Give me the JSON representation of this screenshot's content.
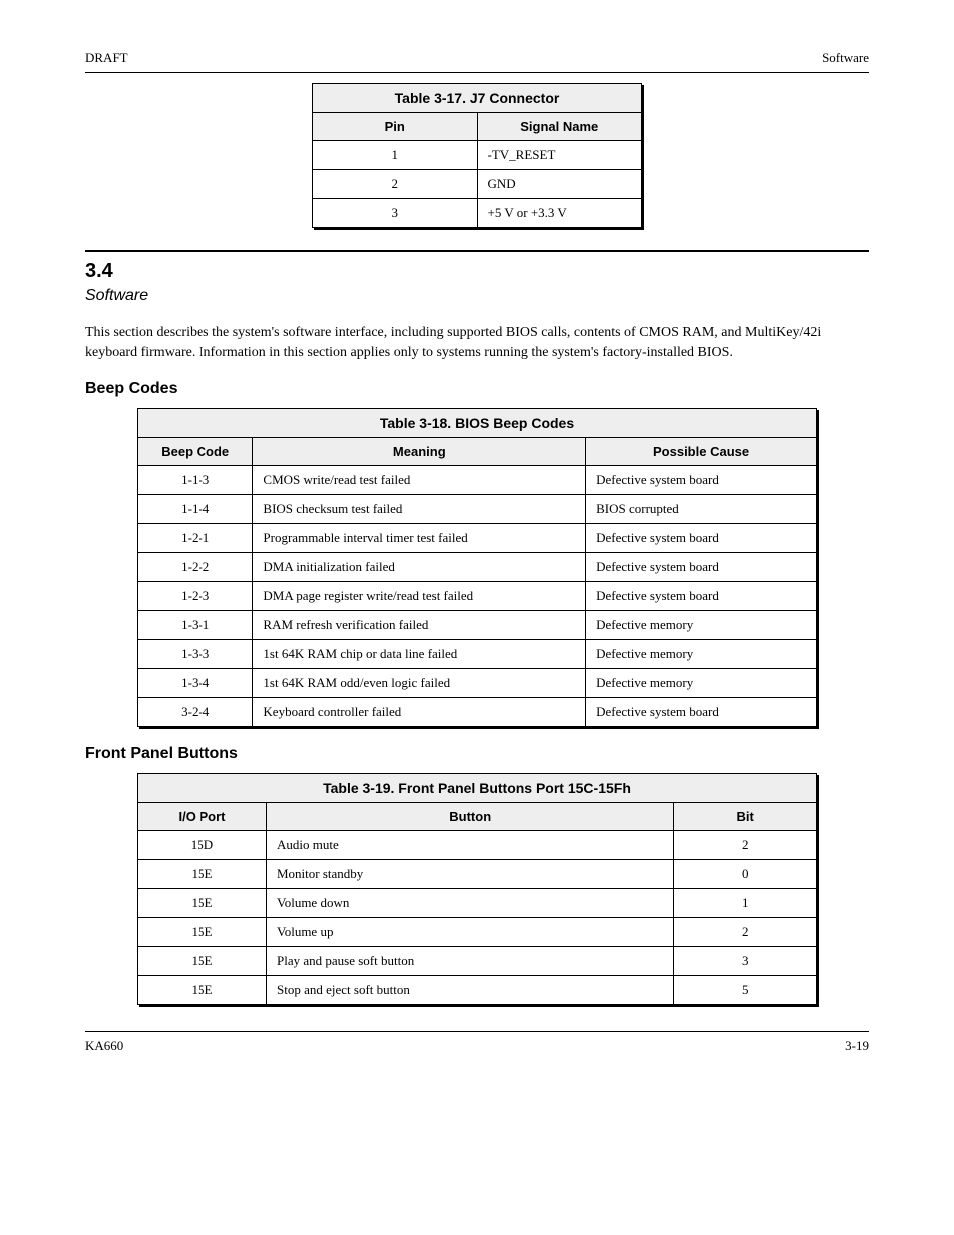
{
  "header": {
    "left": "DRAFT",
    "right": "Software"
  },
  "table1": {
    "title": "Table 3-17. J7 Connector",
    "col1_header": "Pin",
    "col2_header": "Signal Name",
    "rows": [
      {
        "pin": "1",
        "signal": "-TV_RESET"
      },
      {
        "pin": "2",
        "signal": "GND"
      },
      {
        "pin": "3",
        "signal": "+5 V or +3.3 V"
      }
    ]
  },
  "section": {
    "number": "3.4",
    "title": "Software",
    "paragraph": "This section describes the system's software interface, including supported BIOS calls, contents of CMOS RAM, and MultiKey/42i keyboard firmware. Information in this section applies only to systems running the system's factory-installed BIOS."
  },
  "sub_codes": {
    "title": "Beep Codes"
  },
  "table2": {
    "title": "Table 3-18. BIOS Beep Codes",
    "headers": [
      "Beep Code",
      "Meaning",
      "Possible Cause"
    ],
    "rows": [
      [
        "1-1-3",
        "CMOS write/read test failed",
        "Defective system board"
      ],
      [
        "1-1-4",
        "BIOS checksum test failed",
        "BIOS corrupted"
      ],
      [
        "1-2-1",
        "Programmable interval timer test failed",
        "Defective system board"
      ],
      [
        "1-2-2",
        "DMA initialization failed",
        "Defective system board"
      ],
      [
        "1-2-3",
        "DMA page register write/read test failed",
        "Defective system board"
      ],
      [
        "1-3-1",
        "RAM refresh verification failed",
        "Defective memory"
      ],
      [
        "1-3-3",
        "1st 64K RAM chip or data line failed",
        "Defective memory"
      ],
      [
        "1-3-4",
        "1st 64K RAM odd/even logic failed",
        "Defective memory"
      ],
      [
        "3-2-4",
        "Keyboard controller failed",
        "Defective system board"
      ]
    ]
  },
  "sub_buttons": {
    "title": "Front Panel Buttons"
  },
  "table3": {
    "title": "Table 3-19. Front Panel Buttons Port 15C-15Fh",
    "headers": [
      "I/O Port",
      "Button",
      "Bit"
    ],
    "rows": [
      [
        "15D",
        "Audio mute",
        "2"
      ],
      [
        "15E",
        "Monitor standby",
        "0"
      ],
      [
        "15E",
        "Volume down",
        "1"
      ],
      [
        "15E",
        "Volume up",
        "2"
      ],
      [
        "15E",
        "Play and pause soft button",
        "3"
      ],
      [
        "15E",
        "Stop and eject soft button",
        "5"
      ]
    ]
  },
  "footer": {
    "left": "KA660",
    "right": "3-19"
  }
}
